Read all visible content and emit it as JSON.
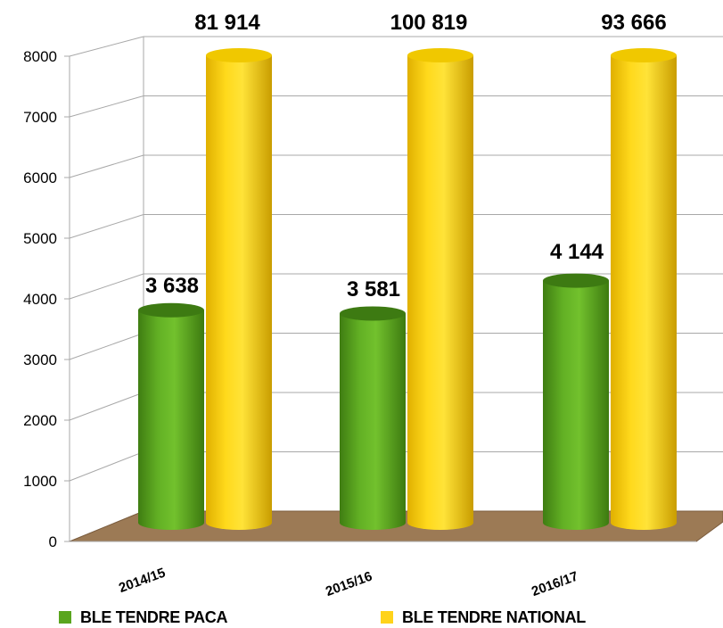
{
  "chart_data": {
    "type": "bar",
    "categories": [
      "2014/15",
      "2015/16",
      "2016/17"
    ],
    "series": [
      {
        "name": "BLE TENDRE PACA",
        "color": "#5aa51e",
        "values": [
          3638,
          3581,
          4144
        ],
        "labels": [
          "3 638",
          "3 581",
          "4 144"
        ]
      },
      {
        "name": "BLE TENDRE NATIONAL",
        "color": "#ffd31a",
        "values": [
          81914,
          100819,
          93666
        ],
        "labels": [
          "81 914",
          "100 819",
          "93 666"
        ]
      }
    ],
    "ylim": [
      0,
      8000
    ],
    "yticks": [
      "0",
      "1000",
      "2000",
      "3000",
      "4000",
      "5000",
      "6000",
      "7000",
      "8000"
    ],
    "grid": true,
    "legend_position": "bottom",
    "floor_color": "#9c7a55"
  }
}
